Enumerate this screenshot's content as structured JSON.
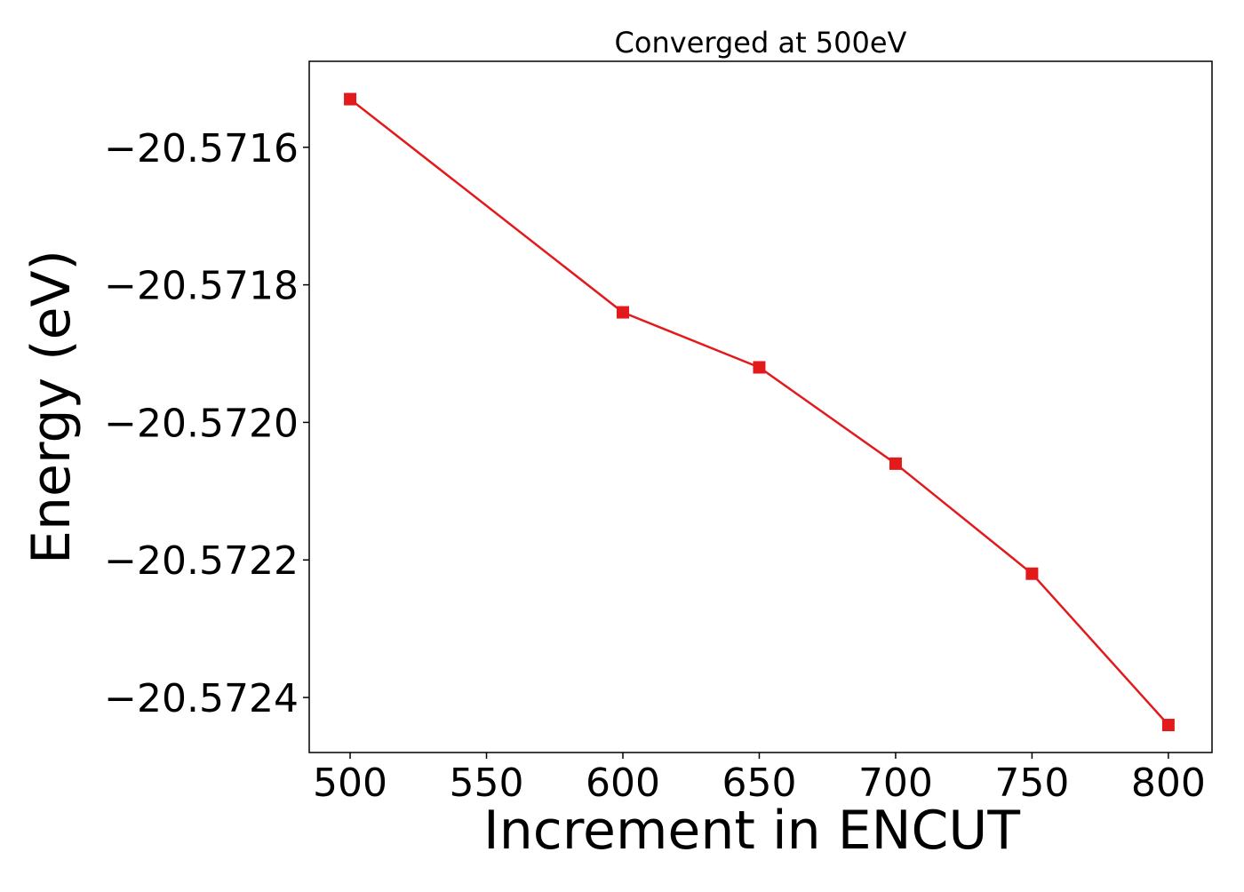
{
  "chart_data": {
    "type": "line",
    "title": "Converged at 500eV",
    "xlabel": "Increment in ENCUT",
    "ylabel": "Energy (eV)",
    "x": [
      500,
      600,
      650,
      700,
      750,
      800
    ],
    "series": [
      {
        "values": [
          -20.57153,
          -20.57184,
          -20.57192,
          -20.57206,
          -20.57222,
          -20.57244
        ],
        "color": "#e31a1c",
        "marker": "square"
      }
    ],
    "xlim": [
      485,
      816
    ],
    "ylim": [
      -20.57248,
      -20.571475
    ],
    "xticks": [
      500,
      550,
      600,
      650,
      700,
      750,
      800
    ],
    "xtick_labels": [
      "500",
      "550",
      "600",
      "650",
      "700",
      "750",
      "800"
    ],
    "yticks": [
      -20.5716,
      -20.5718,
      -20.572,
      -20.5722,
      -20.5724
    ],
    "ytick_labels": [
      "−20.5716",
      "−20.5718",
      "−20.5720",
      "−20.5722",
      "−20.5724"
    ],
    "grid": false,
    "legend": "none"
  }
}
